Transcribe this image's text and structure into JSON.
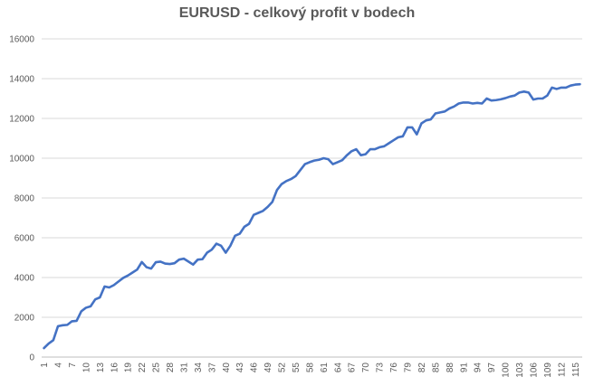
{
  "chart_data": {
    "type": "line",
    "title": "EURUSD - celkový profit v bodech",
    "xlabel": "",
    "ylabel": "",
    "ylim": [
      0,
      16000
    ],
    "yticks": [
      0,
      2000,
      4000,
      6000,
      8000,
      10000,
      12000,
      14000,
      16000
    ],
    "xticks": [
      1,
      4,
      7,
      10,
      13,
      16,
      19,
      22,
      25,
      28,
      31,
      34,
      37,
      40,
      43,
      46,
      49,
      52,
      55,
      58,
      61,
      64,
      67,
      70,
      73,
      76,
      79,
      82,
      85,
      88,
      91,
      94,
      97,
      100,
      103,
      106,
      109,
      112,
      115
    ],
    "grid": true,
    "legend": "none",
    "line_color": "#4472c4",
    "series": [
      {
        "x": [
          1,
          2,
          3,
          4,
          5,
          6,
          7,
          8,
          9,
          10,
          11,
          12,
          13,
          14,
          15,
          16,
          17,
          18,
          19,
          20,
          21,
          22,
          23,
          24,
          25,
          26,
          27,
          28,
          29,
          30,
          31,
          32,
          33,
          34,
          35,
          36,
          37,
          38,
          39,
          40,
          41,
          42,
          43,
          44,
          45,
          46,
          47,
          48,
          49,
          50,
          51,
          52,
          53,
          54,
          55,
          56,
          57,
          58,
          59,
          60,
          61,
          62,
          63,
          64,
          65,
          66,
          67,
          68,
          69,
          70,
          71,
          72,
          73,
          74,
          75,
          76,
          77,
          78,
          79,
          80,
          81,
          82,
          83,
          84,
          85,
          86,
          87,
          88,
          89,
          90,
          91,
          92,
          93,
          94,
          95,
          96,
          97,
          98,
          99,
          100,
          101,
          102,
          103,
          104,
          105,
          106,
          107,
          108,
          109,
          110,
          111,
          112,
          113,
          114,
          115,
          116
        ],
        "values": [
          450,
          680,
          850,
          1550,
          1600,
          1620,
          1800,
          1820,
          2300,
          2480,
          2550,
          2900,
          3000,
          3550,
          3500,
          3620,
          3800,
          3980,
          4100,
          4250,
          4400,
          4780,
          4520,
          4450,
          4770,
          4800,
          4700,
          4680,
          4720,
          4900,
          4950,
          4800,
          4650,
          4900,
          4920,
          5250,
          5400,
          5700,
          5600,
          5250,
          5600,
          6100,
          6200,
          6550,
          6700,
          7150,
          7250,
          7350,
          7550,
          7800,
          8400,
          8700,
          8850,
          8950,
          9100,
          9400,
          9700,
          9800,
          9880,
          9920,
          10000,
          9950,
          9700,
          9800,
          9900,
          10150,
          10350,
          10450,
          10150,
          10200,
          10450,
          10450,
          10550,
          10600,
          10750,
          10900,
          11050,
          11100,
          11550,
          11550,
          11200,
          11750,
          11900,
          11950,
          12250,
          12300,
          12350,
          12500,
          12600,
          12750,
          12800,
          12800,
          12750,
          12780,
          12750,
          13000,
          12900,
          12920,
          12960,
          13020,
          13100,
          13150,
          13300,
          13350,
          13300,
          12950,
          13000,
          13000,
          13150,
          13550,
          13480,
          13550,
          13550,
          13650,
          13700,
          13720
        ]
      }
    ]
  }
}
